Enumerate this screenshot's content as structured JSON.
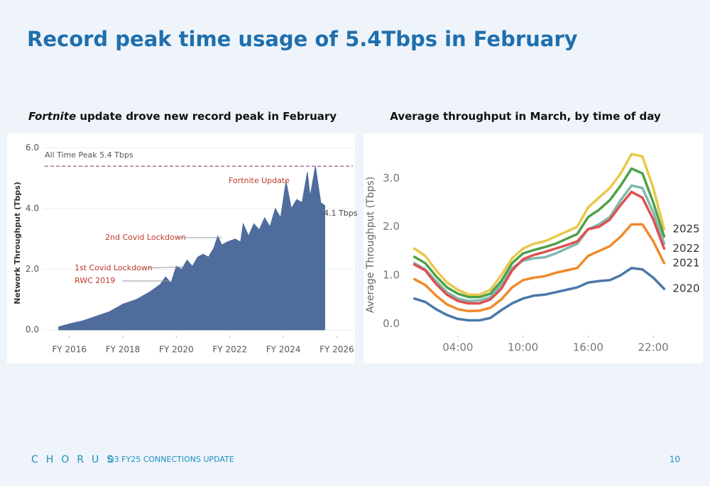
{
  "title": "Record peak time usage of 5.4Tbps in February",
  "footer": {
    "logo": "CHORUS",
    "text": "Q3 FY25 CONNECTIONS UPDATE",
    "page": "10"
  },
  "chart_data": [
    {
      "type": "area",
      "title_parts": [
        "Fortnite",
        " update drove new record peak in February"
      ],
      "y_label": "Network Throughput (Tbps)",
      "x": [
        2015.6,
        2016.0,
        2016.5,
        2017.0,
        2017.5,
        2018.0,
        2018.5,
        2019.0,
        2019.4,
        2019.6,
        2019.8,
        2020.0,
        2020.2,
        2020.4,
        2020.6,
        2020.8,
        2021.0,
        2021.2,
        2021.4,
        2021.55,
        2021.7,
        2021.9,
        2022.2,
        2022.4,
        2022.5,
        2022.7,
        2022.9,
        2023.1,
        2023.3,
        2023.5,
        2023.7,
        2023.9,
        2024.1,
        2024.3,
        2024.5,
        2024.7,
        2024.9,
        2025.0,
        2025.2,
        2025.4,
        2025.55
      ],
      "values": [
        0.1,
        0.2,
        0.3,
        0.45,
        0.6,
        0.85,
        1.0,
        1.25,
        1.5,
        1.75,
        1.55,
        2.1,
        2.0,
        2.3,
        2.1,
        2.4,
        2.5,
        2.4,
        2.7,
        3.1,
        2.8,
        2.9,
        3.0,
        2.9,
        3.5,
        3.1,
        3.5,
        3.3,
        3.7,
        3.4,
        4.0,
        3.7,
        4.9,
        4.0,
        4.3,
        4.2,
        5.2,
        4.4,
        5.4,
        4.2,
        4.1
      ],
      "color": "#4f6c9c",
      "peak_line": 5.4,
      "annotations": [
        "All Time Peak 5.4 Tbps",
        "Fortnite Update",
        "2nd Covid Lockdown",
        "1st Covid Lockdown",
        "RWC 2019",
        "4.1 Tbps"
      ],
      "xlim": [
        2015.0,
        2026.6
      ],
      "xticks": [
        {
          "value": 2016,
          "label": "FY 2016"
        },
        {
          "value": 2018,
          "label": "FY 2018"
        },
        {
          "value": 2020,
          "label": "FY 2020"
        },
        {
          "value": 2022,
          "label": "FY 2022"
        },
        {
          "value": 2024,
          "label": "FY 2024"
        },
        {
          "value": 2026,
          "label": "FY 2026"
        }
      ],
      "ylim": [
        0,
        6.2
      ],
      "yticks": [
        {
          "value": 0,
          "label": "0.0"
        },
        {
          "value": 2,
          "label": "2.0"
        },
        {
          "value": 4,
          "label": "4.0"
        },
        {
          "value": 6,
          "label": "6.0"
        }
      ],
      "grid": true
    },
    {
      "type": "line",
      "title_parts": [
        "Average throughput in March, by time of day"
      ],
      "y_label": "Average Throughput (Tbps)",
      "x": [
        0,
        1,
        2,
        3,
        4,
        5,
        6,
        7,
        8,
        9,
        10,
        11,
        12,
        13,
        14,
        15,
        16,
        17,
        18,
        19,
        20,
        21,
        22,
        23
      ],
      "series": [
        {
          "name": "2025",
          "color": "#e9c84a",
          "values": [
            1.55,
            1.4,
            1.1,
            0.85,
            0.7,
            0.6,
            0.6,
            0.7,
            1.0,
            1.35,
            1.55,
            1.65,
            1.7,
            1.8,
            1.9,
            2.0,
            2.4,
            2.6,
            2.8,
            3.1,
            3.5,
            3.45,
            2.8,
            1.95
          ]
        },
        {
          "color": "#4fa04a",
          "values": [
            1.38,
            1.25,
            0.98,
            0.75,
            0.62,
            0.55,
            0.55,
            0.62,
            0.88,
            1.25,
            1.45,
            1.52,
            1.58,
            1.65,
            1.75,
            1.85,
            2.2,
            2.35,
            2.55,
            2.85,
            3.2,
            3.1,
            2.5,
            1.8
          ]
        },
        {
          "color": "#7fb9b0",
          "values": [
            1.25,
            1.12,
            0.88,
            0.65,
            0.52,
            0.47,
            0.48,
            0.55,
            0.8,
            1.15,
            1.3,
            1.35,
            1.37,
            1.45,
            1.55,
            1.65,
            1.95,
            2.05,
            2.2,
            2.55,
            2.85,
            2.8,
            2.3,
            1.65
          ]
        },
        {
          "name": "2022",
          "color": "#e05050",
          "values": [
            1.22,
            1.1,
            0.82,
            0.6,
            0.47,
            0.42,
            0.42,
            0.5,
            0.72,
            1.1,
            1.33,
            1.42,
            1.48,
            1.55,
            1.62,
            1.7,
            1.95,
            2.0,
            2.15,
            2.45,
            2.72,
            2.6,
            2.15,
            1.55
          ]
        },
        {
          "name": "2021",
          "color": "#f08a2c",
          "values": [
            0.92,
            0.8,
            0.58,
            0.4,
            0.3,
            0.26,
            0.27,
            0.33,
            0.5,
            0.75,
            0.9,
            0.95,
            0.98,
            1.05,
            1.1,
            1.15,
            1.4,
            1.5,
            1.6,
            1.8,
            2.05,
            2.05,
            1.7,
            1.25
          ]
        },
        {
          "name": "2020",
          "color": "#4a78a8",
          "values": [
            0.52,
            0.45,
            0.3,
            0.18,
            0.1,
            0.07,
            0.07,
            0.12,
            0.28,
            0.42,
            0.52,
            0.58,
            0.6,
            0.65,
            0.7,
            0.75,
            0.85,
            0.88,
            0.9,
            1.0,
            1.15,
            1.12,
            0.95,
            0.72
          ]
        }
      ],
      "xlim": [
        -0.5,
        25
      ],
      "xticks": [
        {
          "value": 4,
          "label": "04:00"
        },
        {
          "value": 10,
          "label": "10:00"
        },
        {
          "value": 16,
          "label": "16:00"
        },
        {
          "value": 22,
          "label": "22:00"
        }
      ],
      "ylim": [
        -0.2,
        3.75
      ],
      "yticks": [
        {
          "value": 0,
          "label": "0.0"
        },
        {
          "value": 1,
          "label": "1.0"
        },
        {
          "value": 2,
          "label": "2.0"
        },
        {
          "value": 3,
          "label": "3.0"
        }
      ],
      "grid": false
    }
  ]
}
